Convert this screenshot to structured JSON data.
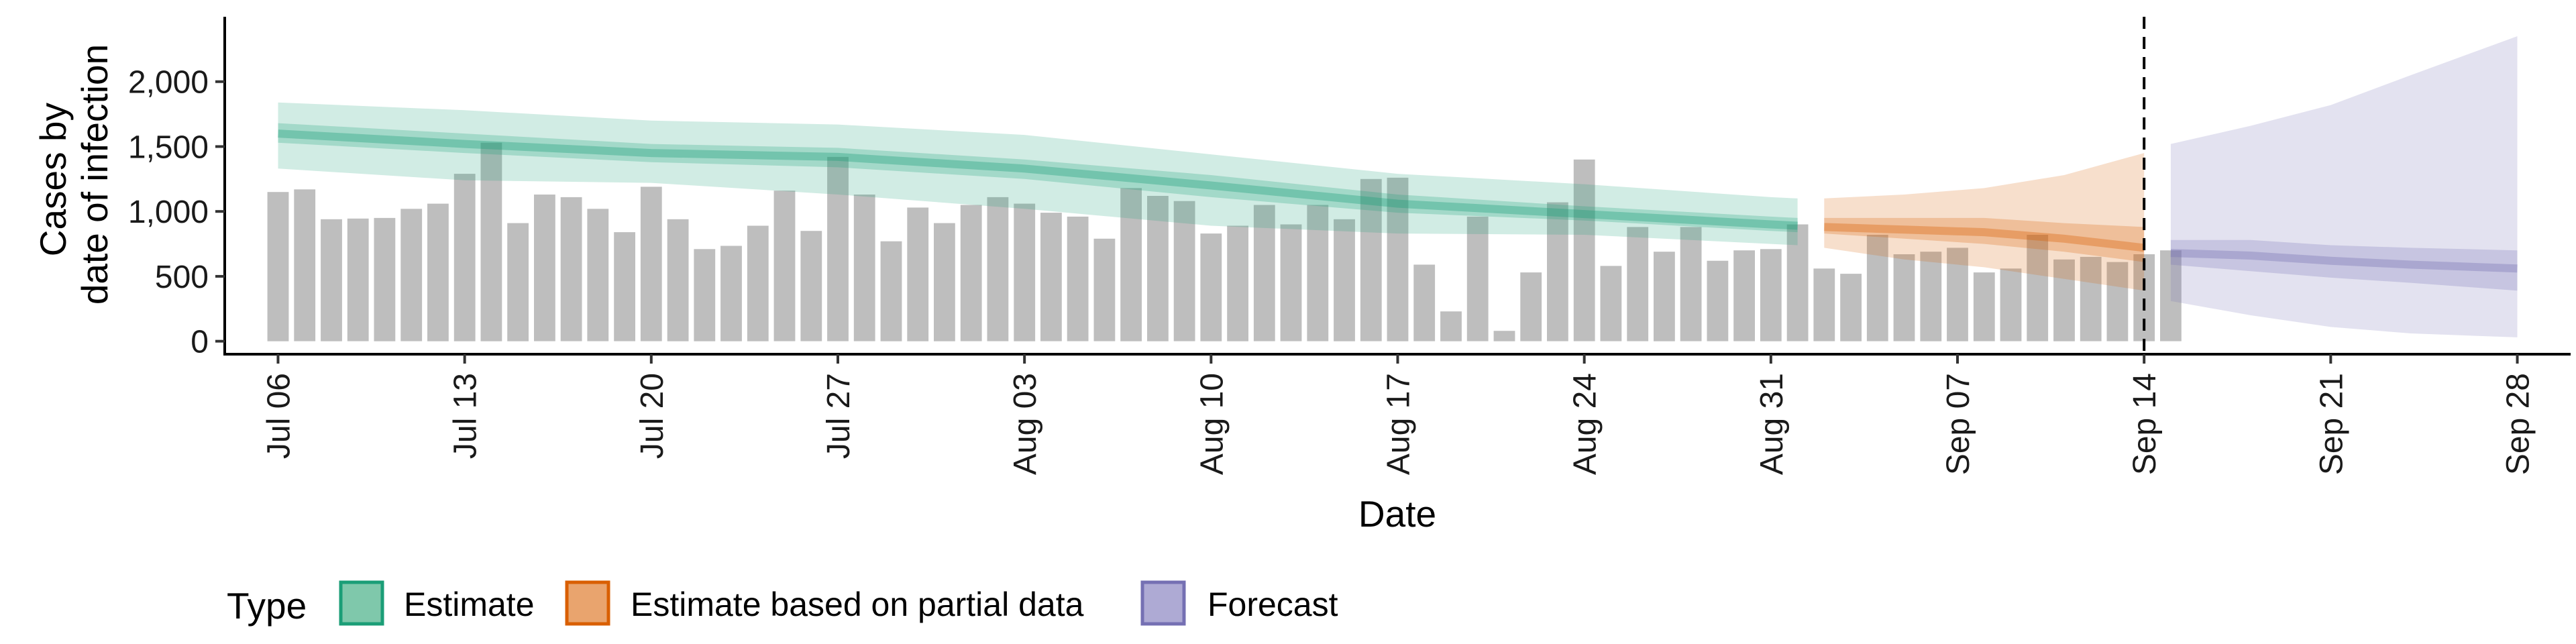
{
  "chart_data": {
    "type": "bar",
    "xlabel": "Date",
    "ylabel_lines": [
      "Cases by",
      "date of infection"
    ],
    "yticks": [
      0,
      500,
      1000,
      1500,
      2000
    ],
    "ytick_labels": [
      "0",
      "500",
      "1,000",
      "1,500",
      "2,000"
    ],
    "ylim": [
      -100,
      2500
    ],
    "xlim": [
      "2020-07-04",
      "2020-09-30"
    ],
    "xticks": [
      "2020-07-06",
      "2020-07-13",
      "2020-07-20",
      "2020-07-27",
      "2020-08-03",
      "2020-08-10",
      "2020-08-17",
      "2020-08-24",
      "2020-08-31",
      "2020-09-07",
      "2020-09-14",
      "2020-09-21",
      "2020-09-28"
    ],
    "xtick_labels": [
      "Jul 06",
      "Jul 13",
      "Jul 20",
      "Jul 27",
      "Aug 03",
      "Aug 10",
      "Aug 17",
      "Aug 24",
      "Aug 31",
      "Sep 07",
      "Sep 14",
      "Sep 21",
      "Sep 28"
    ],
    "vline_date": "2020-09-14",
    "legend": {
      "title": "Type",
      "position": "bottom",
      "items": [
        {
          "label": "Estimate",
          "fill": "#7fc8ab",
          "stroke": "#1b9e77"
        },
        {
          "label": "Estimate based on partial data",
          "fill": "#e9a46e",
          "stroke": "#d95f02"
        },
        {
          "label": "Forecast",
          "fill": "#aeaad4",
          "stroke": "#7570b3"
        }
      ]
    },
    "bars": {
      "color": "#bebebe",
      "start_date": "2020-07-06",
      "values": [
        1150,
        1170,
        940,
        945,
        950,
        1020,
        1060,
        1290,
        1530,
        910,
        1130,
        1110,
        1020,
        840,
        1190,
        940,
        710,
        735,
        890,
        1160,
        850,
        1420,
        1130,
        770,
        1030,
        910,
        1050,
        1110,
        1060,
        990,
        960,
        790,
        1180,
        1120,
        1080,
        830,
        890,
        1050,
        900,
        1050,
        940,
        1250,
        1260,
        590,
        230,
        960,
        80,
        530,
        1070,
        1400,
        580,
        880,
        690,
        880,
        620,
        700,
        710,
        900,
        560,
        520,
        820,
        670,
        690,
        720,
        530,
        560,
        820,
        630,
        650,
        610,
        670,
        700
      ]
    },
    "series": [
      {
        "name": "Estimate",
        "color": "#1b9e77",
        "x": [
          "2020-07-06",
          "2020-07-13",
          "2020-07-20",
          "2020-07-27",
          "2020-08-03",
          "2020-08-10",
          "2020-08-17",
          "2020-08-24",
          "2020-08-31",
          "2020-09-01"
        ],
        "median": [
          1600,
          1520,
          1450,
          1420,
          1330,
          1200,
          1060,
          980,
          900,
          890
        ],
        "lower_50": [
          1530,
          1450,
          1380,
          1340,
          1250,
          1110,
          990,
          930,
          850,
          840
        ],
        "upper_50": [
          1680,
          1600,
          1520,
          1490,
          1400,
          1280,
          1130,
          1040,
          960,
          950
        ],
        "lower_90": [
          1330,
          1240,
          1220,
          1130,
          1020,
          890,
          830,
          820,
          750,
          740
        ],
        "upper_90": [
          1840,
          1780,
          1700,
          1670,
          1590,
          1440,
          1290,
          1210,
          1110,
          1100
        ]
      },
      {
        "name": "Estimate based on partial data",
        "color": "#d95f02",
        "x": [
          "2020-09-02",
          "2020-09-05",
          "2020-09-08",
          "2020-09-11",
          "2020-09-14"
        ],
        "median": [
          880,
          860,
          840,
          790,
          720
        ],
        "lower_50": [
          830,
          790,
          750,
          690,
          610
        ],
        "upper_50": [
          950,
          950,
          950,
          910,
          880
        ],
        "lower_90": [
          720,
          630,
          570,
          480,
          390
        ],
        "upper_90": [
          1100,
          1130,
          1180,
          1280,
          1450
        ]
      },
      {
        "name": "Forecast",
        "color": "#7570b3",
        "x": [
          "2020-09-15",
          "2020-09-18",
          "2020-09-21",
          "2020-09-24",
          "2020-09-28"
        ],
        "median": [
          680,
          660,
          620,
          590,
          560
        ],
        "lower_50": [
          590,
          540,
          490,
          450,
          390
        ],
        "upper_50": [
          780,
          780,
          740,
          720,
          700
        ],
        "lower_90": [
          310,
          200,
          110,
          60,
          30
        ],
        "upper_90": [
          1520,
          1660,
          1820,
          2050,
          2350
        ]
      }
    ]
  }
}
